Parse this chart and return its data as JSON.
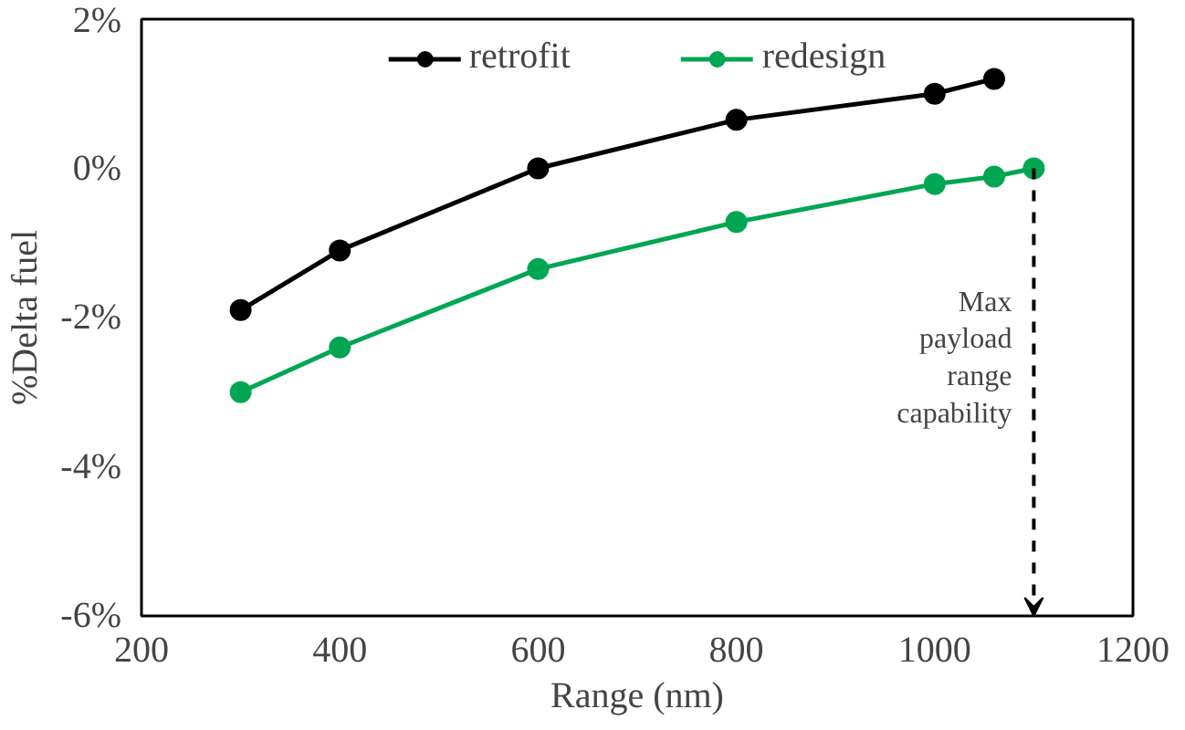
{
  "chart_data": {
    "type": "line",
    "xlabel": "Range (nm)",
    "ylabel": "%Delta fuel",
    "xlim": [
      200,
      1200
    ],
    "xticks": [
      200,
      400,
      600,
      800,
      1000,
      1200
    ],
    "ylim": [
      -6,
      2
    ],
    "yticks": [
      {
        "value": -6,
        "label": "-6%"
      },
      {
        "value": -4,
        "label": "-4%"
      },
      {
        "value": -2,
        "label": "-2%"
      },
      {
        "value": 0,
        "label": "0%"
      },
      {
        "value": 2,
        "label": "2%"
      }
    ],
    "grid": false,
    "legend": "top",
    "marker": "circle",
    "line_style": "solid",
    "series": [
      {
        "name": "retrofit",
        "color": "#000000",
        "x": [
          300,
          400,
          600,
          800,
          1000,
          1060
        ],
        "values": [
          -1.9,
          -1.1,
          0,
          0.65,
          1.0,
          1.2
        ]
      },
      {
        "name": "redesign",
        "color": "#00a651",
        "x": [
          300,
          400,
          600,
          800,
          1000,
          1060,
          1100
        ],
        "values": [
          -3.0,
          -2.4,
          -1.35,
          -0.72,
          -0.21,
          -0.11,
          0
        ]
      }
    ],
    "annotations": [
      "Max\npayload\nrange\ncapability"
    ]
  }
}
